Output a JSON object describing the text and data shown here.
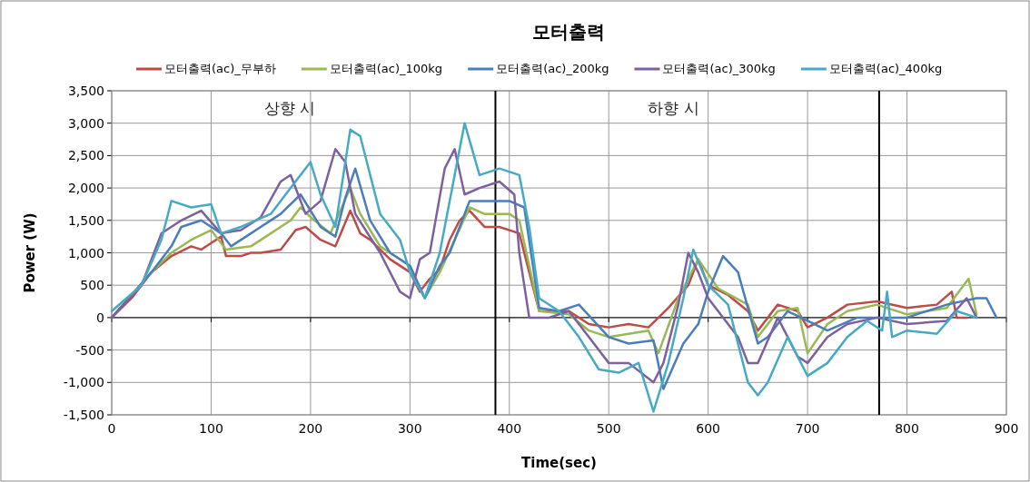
{
  "chart_data": {
    "type": "line",
    "title": "모터출력",
    "xlabel": "Time(sec)",
    "ylabel": "Power (W)",
    "xlim": [
      0,
      900
    ],
    "xticks": [
      0,
      100,
      200,
      300,
      400,
      500,
      600,
      700,
      800,
      900
    ],
    "ylim": [
      -1500,
      3500
    ],
    "yticks": [
      {
        "value": -1500,
        "label": "-1,500"
      },
      {
        "value": -1000,
        "label": "-1,000"
      },
      {
        "value": -500,
        "label": "-500"
      },
      0,
      500,
      {
        "value": 1000,
        "label": "1,000"
      },
      {
        "value": 1500,
        "label": "1,500"
      },
      {
        "value": 2000,
        "label": "2,000"
      },
      {
        "value": 2500,
        "label": "2,500"
      },
      {
        "value": 3000,
        "label": "3,000"
      },
      {
        "value": 3500,
        "label": "3,500"
      }
    ],
    "grid": true,
    "legend": "top",
    "marker": "none",
    "line_style": "solid",
    "ref_lines": [
      {
        "axis": "x",
        "value": 386,
        "color": "#000000"
      },
      {
        "axis": "x",
        "value": 772,
        "color": "#000000"
      }
    ],
    "annotations": [
      "상향 시",
      "하향 시"
    ],
    "series": [
      {
        "name": "모터출력(ac)_무부하",
        "color": "#be4b48",
        "x": [
          0,
          20,
          40,
          60,
          80,
          90,
          100,
          110,
          115,
          130,
          140,
          150,
          170,
          185,
          195,
          210,
          225,
          240,
          250,
          260,
          280,
          300,
          310,
          320,
          330,
          340,
          350,
          360,
          375,
          390,
          410,
          420,
          430,
          460,
          480,
          500,
          520,
          540,
          560,
          580,
          590,
          600,
          620,
          640,
          650,
          670,
          690,
          700,
          720,
          740,
          770,
          800,
          830,
          845,
          850,
          860
        ],
        "values": [
          0,
          300,
          700,
          950,
          1100,
          1050,
          1150,
          1250,
          950,
          950,
          1000,
          1000,
          1050,
          1350,
          1400,
          1200,
          1100,
          1650,
          1300,
          1200,
          900,
          700,
          400,
          600,
          750,
          1200,
          1500,
          1650,
          1400,
          1400,
          1300,
          700,
          100,
          100,
          -100,
          -150,
          -100,
          -150,
          150,
          500,
          900,
          500,
          350,
          100,
          -200,
          200,
          100,
          -150,
          0,
          200,
          250,
          150,
          200,
          400,
          0,
          0
        ]
      },
      {
        "name": "모터출력(ac)_100kg",
        "color": "#98b954",
        "x": [
          0,
          40,
          60,
          80,
          100,
          115,
          140,
          160,
          180,
          190,
          200,
          220,
          240,
          250,
          270,
          300,
          315,
          330,
          345,
          360,
          375,
          400,
          410,
          420,
          430,
          460,
          480,
          500,
          520,
          540,
          550,
          570,
          590,
          610,
          640,
          650,
          670,
          690,
          700,
          720,
          740,
          770,
          800,
          840,
          862,
          870
        ],
        "values": [
          0,
          700,
          1000,
          1200,
          1350,
          1050,
          1100,
          1300,
          1500,
          1700,
          1550,
          1300,
          2000,
          1600,
          1100,
          800,
          300,
          700,
          1200,
          1700,
          1600,
          1600,
          1500,
          800,
          100,
          50,
          -200,
          -300,
          -250,
          -200,
          -550,
          300,
          900,
          450,
          200,
          -300,
          100,
          150,
          -550,
          -100,
          100,
          200,
          50,
          150,
          600,
          50
        ]
      },
      {
        "name": "모터출력(ac)_200kg",
        "color": "#4a7ebb",
        "x": [
          0,
          40,
          60,
          70,
          90,
          110,
          120,
          140,
          170,
          190,
          210,
          225,
          235,
          245,
          260,
          280,
          300,
          315,
          330,
          340,
          350,
          360,
          380,
          400,
          415,
          430,
          450,
          470,
          500,
          520,
          545,
          555,
          575,
          590,
          600,
          615,
          630,
          650,
          660,
          680,
          700,
          720,
          750,
          780,
          800,
          840,
          870,
          880,
          890
        ],
        "values": [
          0,
          700,
          1100,
          1400,
          1500,
          1300,
          1100,
          1300,
          1600,
          1900,
          1400,
          1250,
          1850,
          2300,
          1500,
          1000,
          800,
          300,
          800,
          1000,
          1400,
          1800,
          1800,
          1800,
          1700,
          150,
          100,
          200,
          -300,
          -400,
          -350,
          -1100,
          -400,
          -100,
          400,
          950,
          700,
          -400,
          -300,
          100,
          -50,
          -200,
          0,
          0,
          0,
          200,
          300,
          300,
          0
        ]
      },
      {
        "name": "모터출력(ac)_300kg",
        "color": "#7d60a0",
        "x": [
          0,
          30,
          50,
          70,
          90,
          110,
          130,
          150,
          170,
          180,
          195,
          210,
          225,
          235,
          245,
          270,
          290,
          300,
          310,
          320,
          335,
          345,
          355,
          370,
          390,
          405,
          410,
          420,
          440,
          460,
          480,
          500,
          520,
          545,
          555,
          570,
          580,
          590,
          600,
          630,
          640,
          650,
          670,
          690,
          700,
          720,
          740,
          770,
          800,
          840,
          860,
          870
        ],
        "values": [
          0,
          500,
          1300,
          1500,
          1650,
          1300,
          1350,
          1550,
          2100,
          2200,
          1600,
          1800,
          2600,
          2400,
          1600,
          1000,
          400,
          300,
          900,
          1000,
          2300,
          2600,
          1900,
          2000,
          2100,
          1900,
          1000,
          0,
          0,
          100,
          -300,
          -700,
          -700,
          -1000,
          -700,
          200,
          1000,
          700,
          300,
          -300,
          -700,
          -700,
          0,
          -600,
          -700,
          -300,
          -100,
          0,
          -100,
          -50,
          300,
          0
        ]
      },
      {
        "name": "모터출력(ac)_400kg",
        "color": "#46aac5",
        "x": [
          0,
          30,
          50,
          60,
          80,
          100,
          110,
          130,
          160,
          180,
          200,
          210,
          225,
          240,
          250,
          270,
          290,
          300,
          315,
          330,
          345,
          355,
          370,
          390,
          410,
          420,
          430,
          450,
          470,
          490,
          510,
          530,
          545,
          560,
          575,
          585,
          600,
          620,
          640,
          650,
          660,
          680,
          700,
          720,
          740,
          760,
          775,
          780,
          785,
          800,
          830,
          850,
          870
        ],
        "values": [
          100,
          500,
          1200,
          1800,
          1700,
          1750,
          1300,
          1400,
          1600,
          2000,
          2400,
          1900,
          1400,
          2900,
          2800,
          1600,
          1200,
          700,
          300,
          1000,
          2200,
          3000,
          2200,
          2300,
          2200,
          1400,
          300,
          100,
          -300,
          -800,
          -850,
          -700,
          -1450,
          -700,
          300,
          1050,
          500,
          200,
          -1000,
          -1200,
          -1000,
          -300,
          -900,
          -700,
          -300,
          -50,
          -200,
          400,
          -300,
          -200,
          -250,
          100,
          0
        ]
      }
    ]
  }
}
